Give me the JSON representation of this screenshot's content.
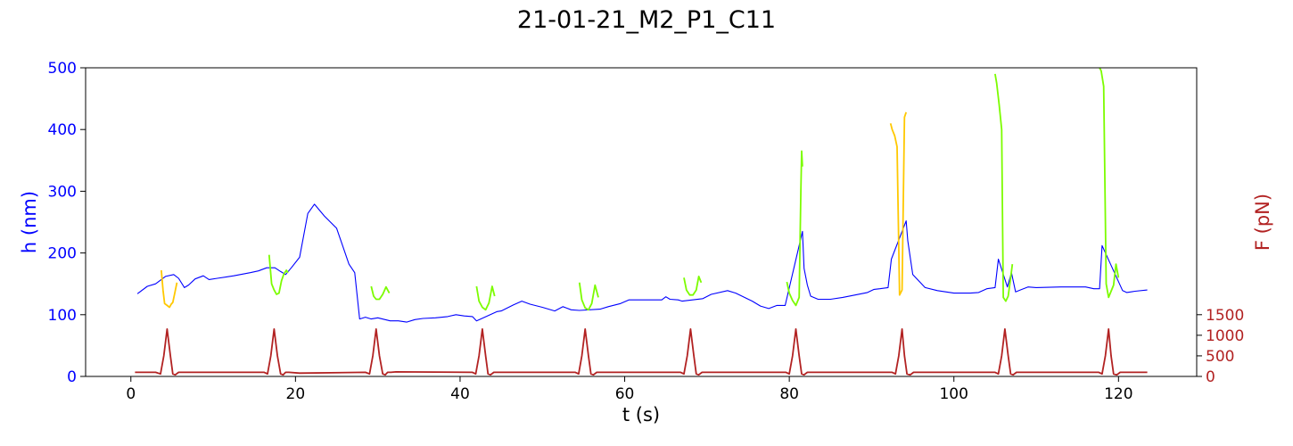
{
  "chart_data": {
    "type": "line",
    "title": "21-01-21_M2_P1_C11",
    "xlabel": "t (s)",
    "ylabel_left": "h (nm)",
    "ylabel_right": "F (pN)",
    "xlim": [
      -5.5,
      129.5
    ],
    "ylim_left": [
      0,
      500
    ],
    "ylim_right": [
      0,
      7500
    ],
    "x_ticks": [
      0,
      20,
      40,
      60,
      80,
      100,
      120
    ],
    "y_ticks_left": [
      0,
      100,
      200,
      300,
      400,
      500
    ],
    "y_ticks_right": [
      0,
      500,
      1000,
      1500
    ],
    "grid": false,
    "legend": "none",
    "colors": {
      "height": "#0000ff",
      "segment_yellow": "#ffc800",
      "segment_green": "#7cfc00",
      "force": "#b22222",
      "axis_left": "#0000ff",
      "axis_right": "#b22222",
      "text": "#000000"
    },
    "series": [
      {
        "color": "#0000ff",
        "axis": "left",
        "x": [
          0.8,
          2.0,
          3.0,
          3.7,
          4.2,
          5.2,
          5.8,
          6.5,
          7.0,
          7.8,
          8.8,
          9.5,
          10.5,
          12.5,
          14.5,
          15.5,
          16.5,
          17.5,
          18.2,
          18.8,
          19.5,
          20.5,
          21.5,
          22.3,
          23.5,
          25.0,
          26.5,
          27.2,
          27.8,
          28.5,
          29.2,
          30.0,
          31.5,
          32.5,
          33.5,
          34.5,
          35.5,
          37.0,
          38.5,
          39.5,
          40.5,
          41.5,
          42.0,
          44.5,
          45.0,
          46.5,
          47.5,
          48.5,
          50.0,
          51.5,
          52.5,
          53.5,
          54.5,
          57.0,
          58.0,
          59.5,
          60.5,
          62.0,
          63.5,
          64.5,
          65.0,
          65.5,
          66.5,
          67.0,
          69.5,
          70.5,
          72.5,
          73.5,
          75.5,
          76.5,
          77.5,
          78.5,
          79.5,
          81.6,
          81.8,
          82.2,
          82.6,
          83.5,
          85.0,
          86.5,
          88.0,
          89.5,
          90.3,
          91.0,
          92.0,
          92.4,
          94.2,
          94.4,
          95.0,
          96.5,
          98.0,
          100.0,
          102.0,
          103.0,
          104.0,
          105.0,
          105.4,
          106.5,
          107.0,
          107.5,
          109.0,
          110.0,
          113.0,
          115.5,
          116.0,
          117.0,
          117.7,
          118.0,
          120.5,
          121.0,
          122.0,
          123.5
        ],
        "y": [
          134,
          146,
          150,
          157,
          162,
          165,
          159,
          144,
          148,
          158,
          163,
          157,
          159,
          163,
          168,
          171,
          176,
          176,
          170,
          165,
          176,
          193,
          264,
          279,
          260,
          240,
          182,
          168,
          93,
          96,
          93,
          95,
          90,
          90,
          88,
          92,
          94,
          95,
          97,
          100,
          98,
          97,
          90,
          105,
          106,
          116,
          122,
          117,
          112,
          106,
          113,
          108,
          107,
          109,
          113,
          118,
          124,
          124,
          124,
          124,
          129,
          125,
          124,
          122,
          126,
          133,
          139,
          135,
          122,
          114,
          110,
          115,
          115,
          235,
          175,
          148,
          130,
          125,
          125,
          128,
          132,
          136,
          141,
          142,
          144,
          190,
          252,
          220,
          165,
          144,
          139,
          135,
          135,
          136,
          142,
          144,
          190,
          145,
          168,
          137,
          145,
          144,
          145,
          145,
          145,
          142,
          142,
          212,
          139,
          136,
          138,
          140
        ]
      },
      {
        "color": "#ffc800",
        "axis": "left",
        "x": [
          3.7,
          3.9,
          4.1,
          4.4,
          4.7,
          4.9,
          5.1,
          5.3,
          5.6
        ],
        "y": [
          172,
          140,
          118,
          115,
          112,
          117,
          120,
          133,
          152
        ]
      },
      {
        "color": "#7cfc00",
        "axis": "left",
        "x": [
          16.8,
          17.1,
          17.4,
          17.7,
          18.0,
          18.3,
          18.6,
          18.9,
          19.1
        ],
        "y": [
          197,
          150,
          140,
          133,
          135,
          155,
          166,
          172,
          168
        ]
      },
      {
        "color": "#7cfc00",
        "axis": "left",
        "x": [
          29.2,
          29.5,
          29.8,
          30.2,
          30.6,
          31.0,
          31.4
        ],
        "y": [
          146,
          130,
          125,
          125,
          133,
          145,
          135
        ]
      },
      {
        "color": "#7cfc00",
        "axis": "left",
        "x": [
          42.0,
          42.3,
          42.7,
          43.1,
          43.5,
          43.9,
          44.2
        ],
        "y": [
          146,
          122,
          112,
          108,
          119,
          146,
          130
        ]
      },
      {
        "color": "#7cfc00",
        "axis": "left",
        "x": [
          54.5,
          54.8,
          55.2,
          55.6,
          56.0,
          56.4,
          56.8
        ],
        "y": [
          152,
          124,
          111,
          108,
          118,
          148,
          128
        ]
      },
      {
        "color": "#7cfc00",
        "axis": "left",
        "x": [
          67.2,
          67.5,
          67.9,
          68.3,
          68.7,
          69.0,
          69.3
        ],
        "y": [
          160,
          140,
          132,
          132,
          140,
          162,
          152
        ]
      },
      {
        "color": "#7cfc00",
        "axis": "left",
        "x": [
          79.7,
          80.0,
          80.4,
          80.8,
          81.2,
          81.4,
          81.5,
          81.6
        ],
        "y": [
          153,
          135,
          123,
          115,
          128,
          300,
          365,
          340
        ]
      },
      {
        "color": "#ffc800",
        "axis": "left",
        "x": [
          92.3,
          92.5,
          92.8,
          93.1,
          93.4,
          93.7,
          94.0,
          94.2
        ],
        "y": [
          410,
          400,
          390,
          372,
          132,
          140,
          420,
          428
        ]
      },
      {
        "color": "#7cfc00",
        "axis": "left",
        "x": [
          105.0,
          105.2,
          105.5,
          105.8,
          106.0,
          106.3,
          106.6,
          106.9,
          107.1
        ],
        "y": [
          490,
          475,
          440,
          400,
          128,
          122,
          130,
          160,
          182
        ]
      },
      {
        "color": "#7cfc00",
        "axis": "left",
        "x": [
          117.7,
          117.9,
          118.2,
          118.5,
          118.8,
          119.1,
          119.4,
          119.7,
          120.0
        ],
        "y": [
          500,
          495,
          470,
          150,
          128,
          138,
          148,
          182,
          160
        ]
      },
      {
        "color": "#b22222",
        "axis": "right",
        "x": [
          0.5,
          3.0,
          3.6,
          4.0,
          4.4,
          4.8,
          5.1,
          5.4,
          5.8,
          6.2,
          16.2,
          16.6,
          17.0,
          17.4,
          17.8,
          18.2,
          18.5,
          18.8,
          19.2,
          20.5,
          28.5,
          29.0,
          29.4,
          29.8,
          30.2,
          30.6,
          30.9,
          31.2,
          31.6,
          32.2,
          41.5,
          41.9,
          42.3,
          42.7,
          43.1,
          43.4,
          43.7,
          44.1,
          44.6,
          54.0,
          54.4,
          54.8,
          55.2,
          55.6,
          55.9,
          56.2,
          56.6,
          57.0,
          66.8,
          67.2,
          67.6,
          68.0,
          68.4,
          68.7,
          69.0,
          69.4,
          69.8,
          79.6,
          80.0,
          80.4,
          80.8,
          81.2,
          81.5,
          81.8,
          82.2,
          82.6,
          92.5,
          92.9,
          93.3,
          93.7,
          94.0,
          94.3,
          94.7,
          95.1,
          105.0,
          105.4,
          105.8,
          106.2,
          106.6,
          106.9,
          107.2,
          107.6,
          108.0,
          117.6,
          118.0,
          118.4,
          118.8,
          119.1,
          119.4,
          119.8,
          120.2,
          123.5
        ],
        "y": [
          100,
          100,
          60,
          500,
          1150,
          500,
          60,
          40,
          100,
          100,
          100,
          60,
          500,
          1150,
          500,
          60,
          40,
          100,
          100,
          80,
          100,
          60,
          500,
          1150,
          500,
          60,
          40,
          100,
          100,
          110,
          100,
          60,
          500,
          1150,
          500,
          60,
          40,
          100,
          100,
          100,
          60,
          500,
          1150,
          500,
          60,
          40,
          100,
          100,
          100,
          60,
          500,
          1150,
          500,
          60,
          40,
          100,
          100,
          100,
          60,
          500,
          1150,
          500,
          60,
          40,
          100,
          100,
          100,
          60,
          500,
          1150,
          500,
          60,
          40,
          100,
          100,
          60,
          500,
          1150,
          500,
          60,
          40,
          100,
          100,
          100,
          60,
          500,
          1150,
          500,
          60,
          40,
          100,
          100
        ]
      }
    ]
  }
}
